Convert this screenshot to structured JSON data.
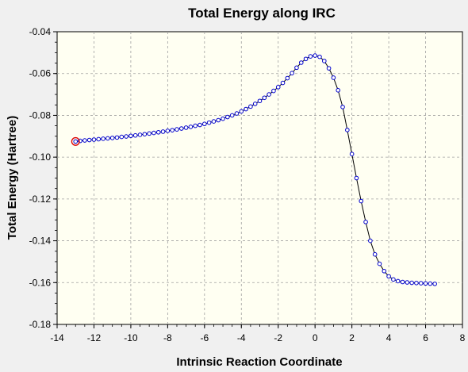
{
  "chart_data": {
    "type": "scatter",
    "title": "Total Energy along IRC",
    "xlabel": "Intrinsic Reaction Coordinate",
    "ylabel": "Total Energy (Hartree)",
    "xlim": [
      -14,
      8
    ],
    "ylim": [
      -0.18,
      -0.04
    ],
    "x_ticks": [
      -14,
      -12,
      -10,
      -8,
      -6,
      -4,
      -2,
      0,
      2,
      4,
      6,
      8
    ],
    "x_tick_labels": [
      "-14",
      "-12",
      "-10",
      "-8",
      "-6",
      "-4",
      "-2",
      "0",
      "2",
      "4",
      "6",
      "8"
    ],
    "y_ticks": [
      -0.04,
      -0.06,
      -0.08,
      -0.1,
      -0.12,
      -0.14,
      -0.16,
      -0.18
    ],
    "y_tick_labels": [
      "-0.04",
      "-0.06",
      "-0.08",
      "-0.10",
      "-0.12",
      "-0.14",
      "-0.16",
      "-0.18"
    ],
    "grid": true,
    "line_color": "#000000",
    "marker_color": "#0000cc",
    "highlight_color": "#dd0000",
    "highlighted_point": {
      "x": -13.0,
      "y": -0.0925
    },
    "series": [
      {
        "x": [
          -13.0,
          -12.75,
          -12.5,
          -12.25,
          -12.0,
          -11.75,
          -11.5,
          -11.25,
          -11.0,
          -10.75,
          -10.5,
          -10.25,
          -10.0,
          -9.75,
          -9.5,
          -9.25,
          -9.0,
          -8.75,
          -8.5,
          -8.25,
          -8.0,
          -7.75,
          -7.5,
          -7.25,
          -7.0,
          -6.75,
          -6.5,
          -6.25,
          -6.0,
          -5.75,
          -5.5,
          -5.25,
          -5.0,
          -4.75,
          -4.5,
          -4.25,
          -4.0,
          -3.75,
          -3.5,
          -3.25,
          -3.0,
          -2.75,
          -2.5,
          -2.25,
          -2.0,
          -1.75,
          -1.5,
          -1.25,
          -1.0,
          -0.75,
          -0.5,
          -0.25,
          0.0,
          0.25,
          0.5,
          0.75,
          1.0,
          1.25,
          1.5,
          1.75,
          2.0,
          2.25,
          2.5,
          2.75,
          3.0,
          3.25,
          3.5,
          3.75,
          4.0,
          4.25,
          4.5,
          4.75,
          5.0,
          5.25,
          5.5,
          5.75,
          6.0,
          6.25,
          6.5
        ],
        "values": [
          -0.0925,
          -0.0922,
          -0.092,
          -0.0918,
          -0.0916,
          -0.0914,
          -0.0912,
          -0.091,
          -0.0908,
          -0.0906,
          -0.0903,
          -0.0901,
          -0.0898,
          -0.0896,
          -0.0893,
          -0.089,
          -0.0887,
          -0.0884,
          -0.0881,
          -0.0878,
          -0.0874,
          -0.0871,
          -0.0867,
          -0.0863,
          -0.0859,
          -0.0855,
          -0.085,
          -0.0846,
          -0.0841,
          -0.0835,
          -0.0829,
          -0.0823,
          -0.0816,
          -0.0808,
          -0.08,
          -0.0791,
          -0.0781,
          -0.077,
          -0.0758,
          -0.0745,
          -0.0731,
          -0.0716,
          -0.07,
          -0.0683,
          -0.0665,
          -0.0645,
          -0.0622,
          -0.0598,
          -0.0572,
          -0.0548,
          -0.053,
          -0.0518,
          -0.0514,
          -0.052,
          -0.054,
          -0.0575,
          -0.062,
          -0.068,
          -0.076,
          -0.087,
          -0.0985,
          -0.11,
          -0.121,
          -0.131,
          -0.14,
          -0.1465,
          -0.151,
          -0.1545,
          -0.157,
          -0.1585,
          -0.1593,
          -0.1597,
          -0.1599,
          -0.1601,
          -0.1602,
          -0.1603,
          -0.1604,
          -0.1605,
          -0.1606
        ]
      }
    ]
  }
}
